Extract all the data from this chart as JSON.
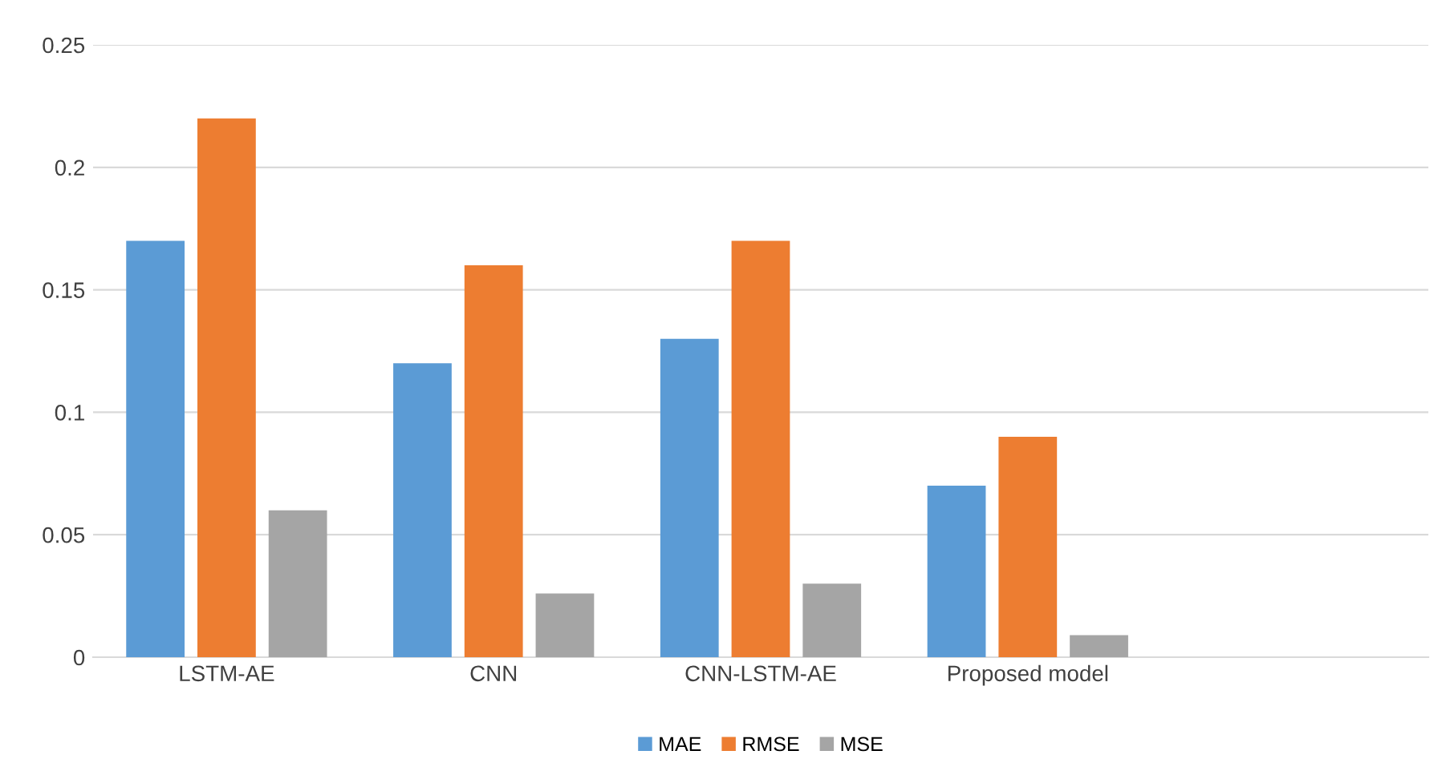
{
  "chart_data": {
    "type": "bar",
    "categories": [
      "LSTM-AE",
      "CNN",
      "CNN-LSTM-AE",
      "Proposed model",
      null
    ],
    "series": [
      {
        "name": "MAE",
        "color": "#5b9bd5",
        "values": [
          0.17,
          0.12,
          0.13,
          0.07,
          null
        ]
      },
      {
        "name": "RMSE",
        "color": "#ed7d31",
        "values": [
          0.22,
          0.16,
          0.17,
          0.09,
          null
        ]
      },
      {
        "name": "MSE",
        "color": "#a5a5a5",
        "values": [
          0.06,
          0.026,
          0.03,
          0.009,
          null
        ]
      }
    ],
    "ylim": [
      0,
      0.25
    ],
    "yticks": [
      0,
      0.05,
      0.1,
      0.15,
      0.2,
      0.25
    ],
    "grid": "y",
    "legend": "bottom"
  }
}
